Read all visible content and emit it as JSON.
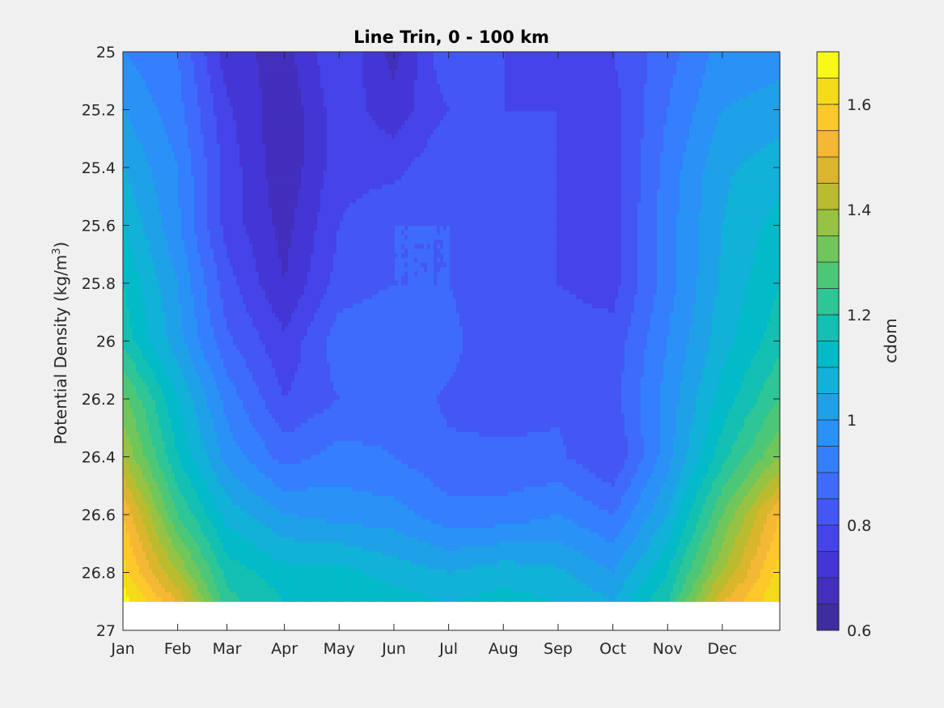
{
  "chart_data": {
    "type": "heatmap",
    "title": "Line Trin, 0 - 100 km",
    "xlabel": "",
    "ylabel": "Potential Density (kg/m",
    "ylabel_sup": "3",
    "ylabel_close": ")",
    "xlim": [
      0,
      12
    ],
    "ylim": [
      25,
      27
    ],
    "y_reversed": true,
    "x_ticks": [
      {
        "v": 0,
        "label": "Jan"
      },
      {
        "v": 1,
        "label": "Feb"
      },
      {
        "v": 1.9,
        "label": "Mar"
      },
      {
        "v": 2.95,
        "label": "Apr"
      },
      {
        "v": 3.95,
        "label": "May"
      },
      {
        "v": 4.95,
        "label": "Jun"
      },
      {
        "v": 5.95,
        "label": "Jul"
      },
      {
        "v": 6.95,
        "label": "Aug"
      },
      {
        "v": 7.95,
        "label": "Sep"
      },
      {
        "v": 8.95,
        "label": "Oct"
      },
      {
        "v": 9.95,
        "label": "Nov"
      },
      {
        "v": 10.95,
        "label": "Dec"
      }
    ],
    "y_ticks": [
      {
        "v": 25,
        "label": "25"
      },
      {
        "v": 25.2,
        "label": "25.2"
      },
      {
        "v": 25.4,
        "label": "25.4"
      },
      {
        "v": 25.6,
        "label": "25.6"
      },
      {
        "v": 25.8,
        "label": "25.8"
      },
      {
        "v": 26,
        "label": "26"
      },
      {
        "v": 26.2,
        "label": "26.2"
      },
      {
        "v": 26.4,
        "label": "26.4"
      },
      {
        "v": 26.6,
        "label": "26.6"
      },
      {
        "v": 26.8,
        "label": "26.8"
      },
      {
        "v": 27,
        "label": "27"
      }
    ],
    "data_y_max": 26.9,
    "colorbar": {
      "label": "cdom",
      "range": [
        0.6,
        1.7
      ],
      "step": 0.05,
      "ticks": [
        {
          "v": 0.6,
          "label": "0.6"
        },
        {
          "v": 0.8,
          "label": "0.8"
        },
        {
          "v": 1.0,
          "label": "1"
        },
        {
          "v": 1.2,
          "label": "1.2"
        },
        {
          "v": 1.4,
          "label": "1.4"
        },
        {
          "v": 1.6,
          "label": "1.6"
        }
      ],
      "colors": [
        "#3d2d9e",
        "#422fbb",
        "#4436d5",
        "#4444e9",
        "#4357f4",
        "#3e6bfb",
        "#347ffd",
        "#2a91f6",
        "#1fa1e7",
        "#11b1d8",
        "#02bac8",
        "#13c0b2",
        "#2ec597",
        "#4cc778",
        "#70c65a",
        "#96c343",
        "#bbbb2f",
        "#d9b62c",
        "#f5b834",
        "#fdc82a",
        "#f4db19",
        "#f8f816"
      ]
    },
    "grid_months": [
      0,
      1,
      1.9,
      2.95,
      3.95,
      4.95,
      5.95,
      6.95,
      7.95,
      8.95,
      9.95,
      10.95,
      12
    ],
    "grid_density": [
      25.0,
      25.2,
      25.4,
      25.6,
      25.8,
      26.0,
      26.2,
      26.4,
      26.6,
      26.8,
      26.9
    ],
    "z": [
      [
        0.95,
        0.9,
        0.72,
        0.68,
        0.8,
        0.68,
        0.85,
        0.8,
        0.78,
        0.8,
        0.88,
        0.97,
        0.98
      ],
      [
        1.0,
        0.92,
        0.76,
        0.66,
        0.78,
        0.72,
        0.8,
        0.8,
        0.8,
        0.78,
        0.9,
        1.0,
        1.02
      ],
      [
        1.05,
        0.95,
        0.78,
        0.66,
        0.78,
        0.78,
        0.85,
        0.82,
        0.8,
        0.78,
        0.92,
        1.04,
        1.08
      ],
      [
        1.1,
        0.96,
        0.78,
        0.68,
        0.8,
        0.85,
        0.85,
        0.82,
        0.8,
        0.78,
        0.93,
        1.05,
        1.12
      ],
      [
        1.15,
        1.0,
        0.82,
        0.7,
        0.82,
        0.85,
        0.85,
        0.8,
        0.8,
        0.78,
        0.93,
        1.06,
        1.15
      ],
      [
        1.18,
        1.02,
        0.86,
        0.76,
        0.88,
        0.9,
        0.87,
        0.8,
        0.82,
        0.82,
        0.95,
        1.08,
        1.18
      ],
      [
        1.32,
        1.1,
        0.93,
        0.8,
        0.85,
        0.88,
        0.84,
        0.83,
        0.84,
        0.83,
        0.97,
        1.12,
        1.25
      ],
      [
        1.4,
        1.15,
        0.98,
        0.88,
        0.92,
        0.9,
        0.86,
        0.86,
        0.86,
        0.8,
        0.98,
        1.18,
        1.35
      ],
      [
        1.55,
        1.25,
        1.08,
        1.0,
        0.98,
        0.97,
        0.92,
        0.92,
        0.95,
        0.9,
        1.05,
        1.3,
        1.55
      ],
      [
        1.62,
        1.4,
        1.18,
        1.12,
        1.12,
        1.08,
        1.05,
        1.08,
        1.06,
        1.0,
        1.15,
        1.4,
        1.62
      ],
      [
        1.68,
        1.5,
        1.22,
        1.15,
        1.15,
        1.12,
        1.1,
        1.12,
        1.1,
        1.05,
        1.2,
        1.5,
        1.65
      ]
    ]
  }
}
